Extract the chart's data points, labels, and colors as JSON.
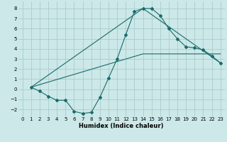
{
  "xlabel": "Humidex (Indice chaleur)",
  "bg_color": "#cce8e8",
  "grid_color": "#aacccc",
  "line_color": "#1a6b6b",
  "xlim": [
    -0.5,
    23.5
  ],
  "ylim": [
    -2.7,
    8.7
  ],
  "xticks": [
    0,
    1,
    2,
    3,
    4,
    5,
    6,
    7,
    8,
    9,
    10,
    11,
    12,
    13,
    14,
    15,
    16,
    17,
    18,
    19,
    20,
    21,
    22,
    23
  ],
  "yticks": [
    -2,
    -1,
    0,
    1,
    2,
    3,
    4,
    5,
    6,
    7,
    8
  ],
  "line1_x": [
    1,
    2,
    3,
    4,
    5,
    6,
    7,
    8,
    9,
    10,
    11,
    12,
    13,
    14,
    15,
    16,
    17,
    18,
    19,
    20,
    21,
    22,
    23
  ],
  "line1_y": [
    0.2,
    -0.2,
    -0.7,
    -1.1,
    -1.1,
    -2.2,
    -2.4,
    -2.3,
    -0.8,
    1.1,
    3.0,
    5.4,
    7.7,
    8.0,
    8.0,
    7.3,
    6.0,
    5.0,
    4.2,
    4.1,
    3.9,
    3.3,
    2.6
  ],
  "line2_x": [
    1,
    14,
    23
  ],
  "line2_y": [
    0.2,
    8.0,
    2.6
  ],
  "line3_x": [
    1,
    14,
    23
  ],
  "line3_y": [
    0.2,
    3.5,
    3.5
  ],
  "xlabel_fontsize": 6.0,
  "tick_fontsize": 5.0
}
